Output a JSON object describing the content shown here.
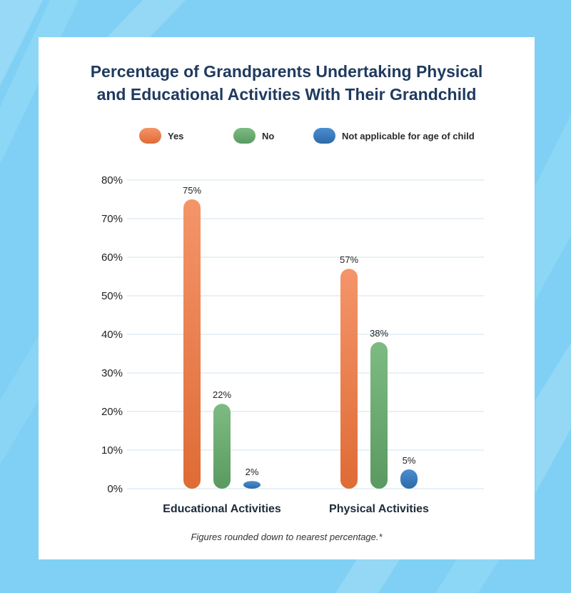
{
  "chart_data": {
    "type": "bar",
    "title_lines": [
      "Percentage of Grandparents Undertaking Physical",
      "and Educational Activities With Their Grandchild"
    ],
    "categories": [
      "Educational Activities",
      "Physical Activities"
    ],
    "series": [
      {
        "name": "Yes",
        "values": [
          75,
          57
        ],
        "labels": [
          "75%",
          "57%"
        ],
        "color_top": "#f4956a",
        "color_bottom": "#df6b35"
      },
      {
        "name": "No",
        "values": [
          22,
          38
        ],
        "labels": [
          "22%",
          "38%"
        ],
        "color_top": "#7dbb82",
        "color_bottom": "#5a9a61"
      },
      {
        "name": "Not applicable for age of child",
        "values": [
          2,
          5
        ],
        "labels": [
          "2%",
          "5%"
        ],
        "color_top": "#4a8ed0",
        "color_bottom": "#2d6aa8"
      }
    ],
    "ylim": [
      0,
      80
    ],
    "yticks": [
      "0%",
      "10%",
      "20%",
      "30%",
      "40%",
      "50%",
      "60%",
      "70%",
      "80%"
    ],
    "grid": true,
    "legend_position": "top",
    "footnote": "Figures rounded down to nearest percentage.*"
  },
  "colors": {
    "background": "#7fd0f4",
    "title": "#1f3a5f",
    "gridline": "#cfe3ec"
  }
}
